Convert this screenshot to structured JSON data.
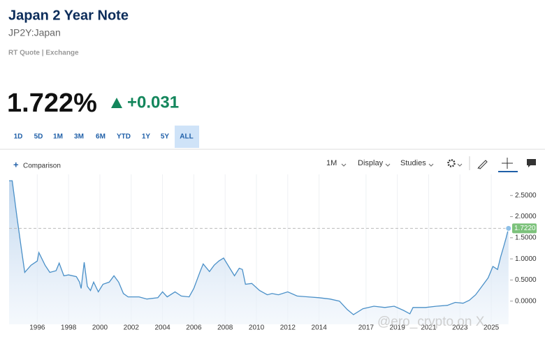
{
  "header": {
    "title": "Japan 2 Year Note",
    "symbol": "JP2Y:Japan",
    "quote_info": "RT Quote | Exchange",
    "price": "1.722%",
    "change": "+0.031"
  },
  "range_buttons": [
    "1D",
    "5D",
    "1M",
    "3M",
    "6M",
    "YTD",
    "1Y",
    "5Y",
    "ALL"
  ],
  "selected_range": 8,
  "toolbar": {
    "comparison": "Comparison",
    "interval": "1M",
    "display": "Display",
    "studies": "Studies"
  },
  "chart_data": {
    "type": "area",
    "color": "#4a90c8",
    "x": [
      1994.2,
      1994.4,
      1994.7,
      1995.0,
      1995.2,
      1995.6,
      1996.0,
      1996.1,
      1996.5,
      1996.8,
      1997.2,
      1997.4,
      1997.7,
      1998.0,
      1998.5,
      1998.7,
      1998.8,
      1999.0,
      1999.2,
      1999.4,
      1999.6,
      1999.9,
      2000.2,
      2000.6,
      2000.9,
      2001.2,
      2001.5,
      2001.8,
      2002.5,
      2003.0,
      2003.7,
      2004.0,
      2004.3,
      2004.8,
      2005.2,
      2005.7,
      2006.0,
      2006.4,
      2006.6,
      2007.0,
      2007.3,
      2007.6,
      2007.9,
      2008.3,
      2008.6,
      2008.9,
      2009.1,
      2009.3,
      2009.7,
      2010.2,
      2010.7,
      2011.0,
      2011.4,
      2012.0,
      2012.6,
      2013.3,
      2014.0,
      2014.7,
      2015.3,
      2015.8,
      2016.2,
      2016.8,
      2017.5,
      2018.2,
      2018.8,
      2019.4,
      2019.8,
      2020.0,
      2020.8,
      2021.5,
      2022.2,
      2022.7,
      2023.2,
      2023.6,
      2024.0,
      2024.4,
      2024.8,
      2025.1,
      2025.4,
      2025.6,
      2025.8,
      2025.95,
      2026.1
    ],
    "values": [
      2.85,
      2.85,
      2.0,
      1.2,
      0.68,
      0.85,
      0.95,
      1.15,
      0.85,
      0.68,
      0.72,
      0.9,
      0.6,
      0.62,
      0.58,
      0.45,
      0.3,
      0.92,
      0.35,
      0.25,
      0.45,
      0.22,
      0.4,
      0.45,
      0.6,
      0.45,
      0.18,
      0.1,
      0.1,
      0.05,
      0.08,
      0.22,
      0.1,
      0.22,
      0.12,
      0.1,
      0.3,
      0.7,
      0.88,
      0.7,
      0.85,
      0.95,
      1.02,
      0.78,
      0.6,
      0.78,
      0.75,
      0.4,
      0.42,
      0.25,
      0.15,
      0.18,
      0.15,
      0.22,
      0.12,
      0.1,
      0.08,
      0.05,
      0.0,
      -0.2,
      -0.32,
      -0.18,
      -0.12,
      -0.15,
      -0.12,
      -0.22,
      -0.3,
      -0.15,
      -0.15,
      -0.12,
      -0.1,
      -0.03,
      -0.05,
      0.02,
      0.15,
      0.35,
      0.55,
      0.82,
      0.75,
      1.05,
      1.3,
      1.5,
      1.722
    ],
    "xlim": [
      1994.2,
      2026.2
    ],
    "xticks": [
      1996,
      1998,
      2000,
      2002,
      2004,
      2006,
      2008,
      2010,
      2012,
      2014,
      2017,
      2019,
      2021,
      2023,
      2025
    ],
    "ylim": [
      -0.55,
      3.0
    ],
    "yticks": [
      {
        "value": 0,
        "label": "0.0000"
      },
      {
        "value": 0.5,
        "label": "0.5000"
      },
      {
        "value": 1,
        "label": "1.0000"
      },
      {
        "value": 1.5,
        "label": "1.5000"
      },
      {
        "value": 2,
        "label": "2.0000"
      },
      {
        "value": 2.5,
        "label": "2.5000"
      }
    ],
    "current_value": 1.722,
    "current_label": "1.7220",
    "current_color": "#7cc27b",
    "grid": true,
    "watermark": "@ero_crypto on X"
  }
}
